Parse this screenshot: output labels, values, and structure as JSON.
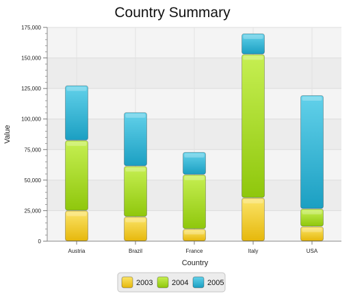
{
  "chart_data": {
    "type": "bar",
    "stacked": true,
    "title": "Country Summary",
    "xlabel": "Country",
    "ylabel": "Value",
    "categories": [
      "Austria",
      "Brazil",
      "France",
      "Italy",
      "USA"
    ],
    "series": [
      {
        "name": "2003",
        "color": "#f0c419",
        "values": [
          25000,
          20000,
          10000,
          35500,
          12000
        ]
      },
      {
        "name": "2004",
        "color": "#a6d81e",
        "values": [
          57500,
          41500,
          44500,
          117500,
          14500
        ]
      },
      {
        "name": "2005",
        "color": "#2fb3d3",
        "values": [
          45000,
          44000,
          18500,
          17000,
          93000
        ]
      }
    ],
    "ylim": [
      0,
      175000
    ],
    "yticks": [
      0,
      25000,
      50000,
      75000,
      100000,
      125000,
      150000,
      175000
    ],
    "ytick_labels": [
      "0",
      "25,000",
      "50,000",
      "75,000",
      "100,000",
      "125,000",
      "150,000",
      "175,000"
    ],
    "grid": true,
    "legend_position": "bottom-center"
  }
}
